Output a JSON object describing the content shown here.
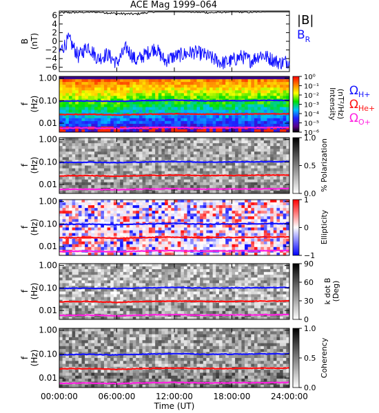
{
  "title": "ACE Mag 1999–064",
  "xaxis": {
    "label": "Time (UT)",
    "ticks": [
      "00:00:00",
      "06:00:00",
      "12:00:00",
      "18:00:00",
      "24:00:00"
    ],
    "range_hours": [
      0,
      24
    ]
  },
  "colors": {
    "b_total": "#000000",
    "b_r": "#1010ff",
    "h_plus": "#1414ff",
    "he_plus": "#ff1010",
    "o_plus": "#ff20e0"
  },
  "legends": {
    "b_total": "|B|",
    "b_r": "B",
    "b_r_sub": "R",
    "omega": "Ω",
    "h_sub": "H+",
    "he_sub": "He+",
    "o_sub": "O+"
  },
  "panels": [
    {
      "id": "b",
      "ylabel": "B",
      "yunit": "(nT)",
      "yticks": [
        "6",
        "4",
        "2",
        "0",
        "−2",
        "−4",
        "−6"
      ],
      "ylim": [
        -7,
        7
      ]
    },
    {
      "id": "intensity",
      "ylabel": "f",
      "yunit": "(Hz)",
      "yticks": [
        "1.00",
        "0.10",
        "0.01"
      ],
      "colorbar": {
        "label_lines": [
          "Intensity",
          "(nT²/Hz)"
        ],
        "ticks": [
          "10⁰",
          "10⁻¹",
          "10⁻²",
          "10⁻³",
          "10⁻⁴",
          "10⁻⁵",
          "10⁻⁶"
        ],
        "scale": "log",
        "range": [
          1e-06,
          1
        ],
        "colormap": "rainbow"
      }
    },
    {
      "id": "polarization",
      "ylabel": "f",
      "yunit": "(Hz)",
      "yticks": [
        "1.00",
        "0.10",
        "0.01"
      ],
      "colorbar": {
        "label_lines": [
          "% Polarization"
        ],
        "ticks": [
          "1.0",
          "0.5",
          "0.0"
        ],
        "range": [
          0,
          1
        ],
        "colormap": "gray"
      }
    },
    {
      "id": "ellipticity",
      "ylabel": "f",
      "yunit": "(Hz)",
      "yticks": [
        "1.00",
        "0.10",
        "0.01"
      ],
      "colorbar": {
        "label_lines": [
          "Ellipticity"
        ],
        "ticks": [
          "1",
          "0",
          "−1"
        ],
        "range": [
          -1,
          1
        ],
        "colormap": "blue-white-red"
      }
    },
    {
      "id": "kdotb",
      "ylabel": "f",
      "yunit": "(Hz)",
      "yticks": [
        "1.00",
        "0.10",
        "0.01"
      ],
      "colorbar": {
        "label_lines": [
          "k dot B",
          "(Deg)"
        ],
        "ticks": [
          "90",
          "60",
          "30",
          "0"
        ],
        "range": [
          0,
          90
        ],
        "colormap": "gray"
      }
    },
    {
      "id": "coherency",
      "ylabel": "f",
      "yunit": "(Hz)",
      "yticks": [
        "1.00",
        "0.10",
        "0.01"
      ],
      "colorbar": {
        "label_lines": [
          "Coherency"
        ],
        "ticks": [
          "1.0",
          "0.5",
          "0.0"
        ],
        "range": [
          0,
          1
        ],
        "colormap": "gray"
      }
    }
  ],
  "chart_data": {
    "type": "heatmap",
    "title": "ACE Mag 1999–064",
    "xlabel": "Time (UT)",
    "x_unit": "hours UT",
    "xlim": [
      0,
      24
    ],
    "b_panel": {
      "ylabel": "B (nT)",
      "ylim": [
        -7,
        7
      ],
      "series": [
        {
          "name": "|B|",
          "x": [
            0,
            2,
            4,
            6,
            8,
            10,
            12,
            14,
            16,
            18,
            20,
            22,
            24
          ],
          "values": [
            6.6,
            6.7,
            6.8,
            6.4,
            6.3,
            6.9,
            7.1,
            6.8,
            6.6,
            6.9,
            6.7,
            7.1,
            7.0
          ]
        },
        {
          "name": "B_R",
          "x": [
            0,
            1,
            2,
            3,
            4,
            5,
            6,
            7,
            8,
            9,
            10,
            11,
            12,
            13,
            14,
            15,
            16,
            17,
            18,
            19,
            20,
            21,
            22,
            23,
            24
          ],
          "values": [
            -2.5,
            0.5,
            -3.5,
            -1.0,
            -4.0,
            -3.0,
            -5.0,
            -1.5,
            -4.5,
            -3.0,
            -1.5,
            -4.5,
            -3.5,
            -3.0,
            -2.5,
            -3.0,
            -4.0,
            -5.0,
            -4.5,
            -3.5,
            -4.5,
            -3.0,
            -4.0,
            -5.0,
            -4.5
          ]
        }
      ]
    },
    "frequency_axis": {
      "ylabel": "f (Hz)",
      "scale": "log",
      "ylim": [
        0.004,
        1.2
      ]
    },
    "gyrofrequency_lines": [
      {
        "name": "Ω H+",
        "x": [
          0,
          3,
          6,
          9,
          12,
          15,
          18,
          21,
          24
        ],
        "values": [
          0.095,
          0.098,
          0.093,
          0.1,
          0.105,
          0.098,
          0.1,
          0.102,
          0.104
        ]
      },
      {
        "name": "Ω He+",
        "x": [
          0,
          3,
          6,
          9,
          12,
          15,
          18,
          21,
          24
        ],
        "values": [
          0.024,
          0.025,
          0.023,
          0.025,
          0.026,
          0.025,
          0.025,
          0.026,
          0.026
        ]
      },
      {
        "name": "Ω O+",
        "x": [
          0,
          3,
          6,
          9,
          12,
          15,
          18,
          21,
          24
        ],
        "values": [
          0.006,
          0.0062,
          0.0058,
          0.0063,
          0.0065,
          0.0062,
          0.0063,
          0.0064,
          0.0065
        ]
      }
    ],
    "spectrogram_panels": [
      "Intensity (nT²/Hz)",
      "% Polarization",
      "Ellipticity",
      "k dot B (Deg)",
      "Coherency"
    ]
  }
}
